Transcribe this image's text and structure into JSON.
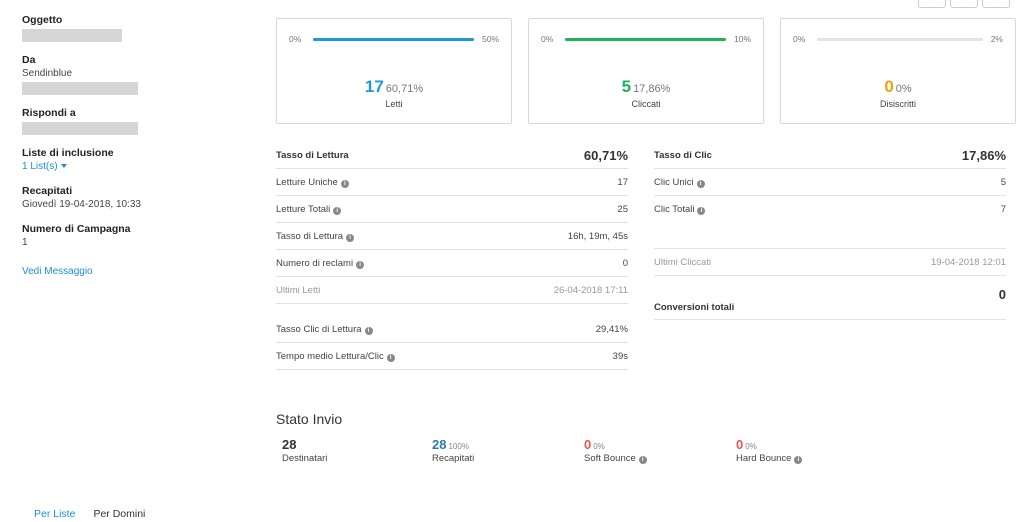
{
  "sidebar": {
    "oggetto_label": "Oggetto",
    "da_label": "Da",
    "da_value": "Sendinblue",
    "rispondi_label": "Rispondi a",
    "liste_label": "Liste di inclusione",
    "liste_value": "1 List(s)",
    "recapitati_label": "Recapitati",
    "recapitati_value": "Giovedì 19-04-2018, 10:33",
    "numero_label": "Numero di Campagna",
    "numero_value": "1",
    "vedi_link": "Vedi Messaggio"
  },
  "cards": [
    {
      "bar_min": "0%",
      "bar_max": "50%",
      "fill": 1.0,
      "color": "#1b9ad6",
      "num": "17",
      "pct": "60,71%",
      "caption": "Letti"
    },
    {
      "bar_min": "0%",
      "bar_max": "10%",
      "fill": 1.0,
      "color": "#20b25a",
      "num": "5",
      "pct": "17,86%",
      "caption": "Cliccati"
    },
    {
      "bar_min": "0%",
      "bar_max": "2%",
      "fill": 0.0,
      "color": "#f39c12",
      "num": "0",
      "pct": "0%",
      "caption": "Disiscritti"
    }
  ],
  "left_stats": {
    "head_label": "Tasso di Lettura",
    "head_value": "60,71%",
    "rows": [
      {
        "label": "Letture Uniche",
        "value": "17"
      },
      {
        "label": "Letture Totali",
        "value": "25"
      },
      {
        "label": "Tasso di Lettura",
        "value": "16h, 19m, 45s"
      },
      {
        "label": "Numero di reclami",
        "value": "0"
      }
    ],
    "ultimi_label": "Ultimi Letti",
    "ultimi_value": "26-04-2018 17:11",
    "extra_rows": [
      {
        "label": "Tasso Clic di Lettura",
        "value": "29,41%"
      },
      {
        "label": "Tempo medio Lettura/Clic",
        "value": "39s"
      }
    ]
  },
  "right_stats": {
    "head_label": "Tasso di Clic",
    "head_value": "17,86%",
    "rows": [
      {
        "label": "Clic Unici",
        "value": "5"
      },
      {
        "label": "Clic Totali",
        "value": "7"
      }
    ],
    "ultimi_label": "Ultimi Cliccati",
    "ultimi_value": "19-04-2018 12:01",
    "conv_label": "Conversioni totali",
    "conv_value": "0"
  },
  "stato_invio": {
    "title": "Stato Invio",
    "items": [
      {
        "num": "28",
        "pct": "",
        "label": "Destinatari",
        "color": "#333333",
        "info": false
      },
      {
        "num": "28",
        "pct": "100%",
        "label": "Recapitati",
        "color": "#2a7ab0",
        "info": false
      },
      {
        "num": "0",
        "pct": "0%",
        "label": "Soft Bounce",
        "color": "#e8574a",
        "info": true
      },
      {
        "num": "0",
        "pct": "0%",
        "label": "Hard Bounce",
        "color": "#e8574a",
        "info": true
      }
    ]
  },
  "bottom_tabs": {
    "per_liste": "Per Liste",
    "per_domini": "Per Domini"
  }
}
